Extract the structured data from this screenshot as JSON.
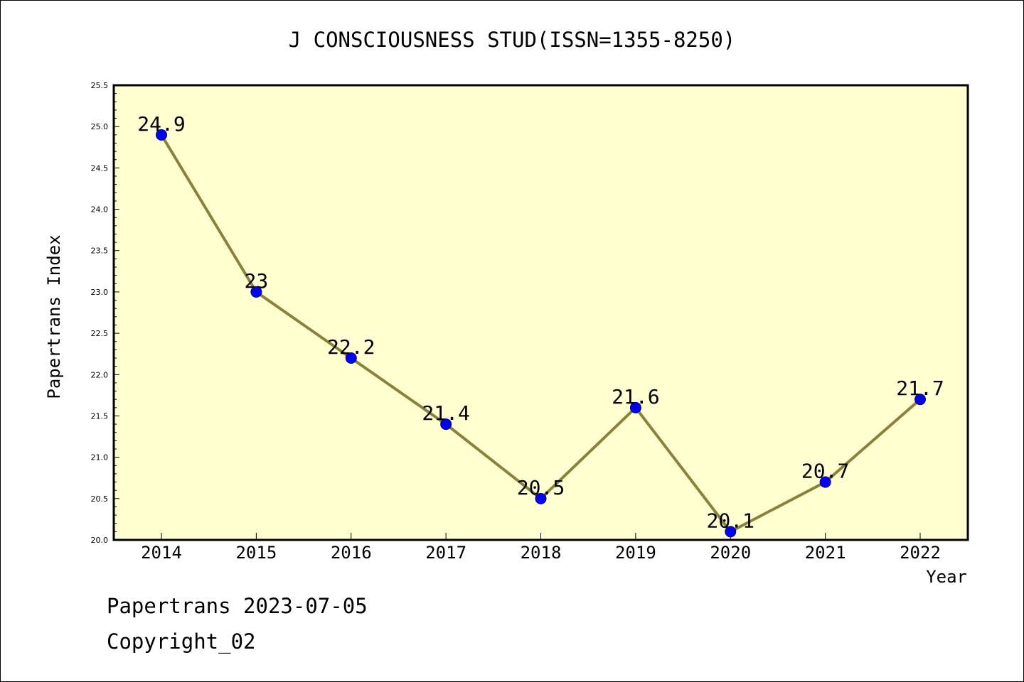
{
  "chart_data": {
    "type": "line",
    "title": "J CONSCIOUSNESS STUD(ISSN=1355-8250)",
    "xlabel": "Year",
    "ylabel": "Papertrans Index",
    "categories": [
      "2014",
      "2015",
      "2016",
      "2017",
      "2018",
      "2019",
      "2020",
      "2021",
      "2022"
    ],
    "series": [
      {
        "values": [
          24.9,
          23,
          22.2,
          21.4,
          20.5,
          21.6,
          20.1,
          20.7,
          21.7
        ],
        "labels": [
          "24.9",
          "23",
          "22.2",
          "21.4",
          "20.5",
          "21.6",
          "20.1",
          "20.7",
          "21.7"
        ]
      }
    ],
    "ylim": [
      20.0,
      25.5
    ],
    "yticks": [
      "20.0",
      "20.5",
      "21.0",
      "21.5",
      "22.0",
      "22.5",
      "23.0",
      "23.5",
      "24.0",
      "24.5",
      "25.0",
      "25.5"
    ],
    "grid": false,
    "colors": {
      "plot_background": "#ffffd0",
      "line": "#8b8239",
      "marker": "#0000ff"
    }
  },
  "footer": {
    "date_line": "Papertrans 2023-07-05",
    "copyright": "Copyright_02"
  }
}
